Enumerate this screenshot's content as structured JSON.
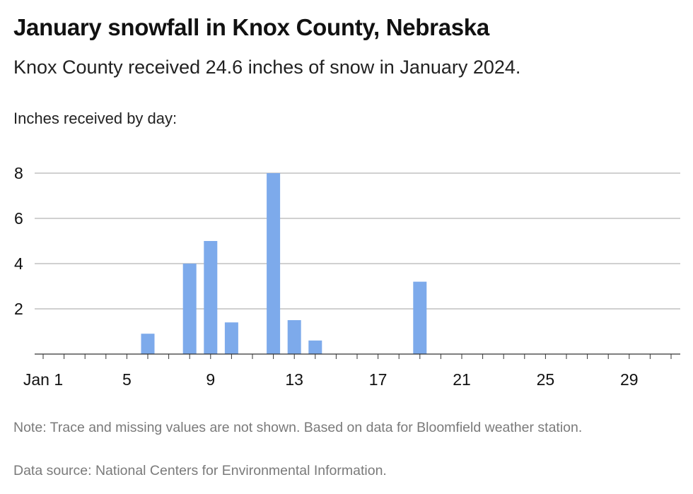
{
  "header": {
    "title": "January snowfall in Knox County, Nebraska",
    "subtitle": "Knox County received 24.6 inches of snow in January 2024.",
    "ylabel": "Inches received by day:"
  },
  "footer": {
    "note": "Note: Trace and missing values are not shown. Based on data for Bloomfield weather station.",
    "source": "Data source: National Centers for Environmental Information."
  },
  "colors": {
    "bar": "#7daaeb",
    "grid": "#b4b4b4",
    "axis": "#333333"
  },
  "chart_data": {
    "type": "bar",
    "title": "January snowfall in Knox County, Nebraska",
    "subtitle": "Knox County received 24.6 inches of snow in January 2024.",
    "ylabel": "Inches received by day:",
    "xlabel": "",
    "x_domain": [
      1,
      31
    ],
    "ylim": [
      0,
      8
    ],
    "y_ticks": [
      2,
      4,
      6,
      8
    ],
    "x_ticks": [
      {
        "day": 1,
        "label": "Jan 1"
      },
      {
        "day": 5,
        "label": "5"
      },
      {
        "day": 9,
        "label": "9"
      },
      {
        "day": 13,
        "label": "13"
      },
      {
        "day": 17,
        "label": "17"
      },
      {
        "day": 21,
        "label": "21"
      },
      {
        "day": 25,
        "label": "25"
      },
      {
        "day": 29,
        "label": "29"
      }
    ],
    "grid": true,
    "bars": [
      {
        "day": 6,
        "value": 0.9
      },
      {
        "day": 8,
        "value": 4.0
      },
      {
        "day": 9,
        "value": 5.0
      },
      {
        "day": 10,
        "value": 1.4
      },
      {
        "day": 12,
        "value": 8.0
      },
      {
        "day": 13,
        "value": 1.5
      },
      {
        "day": 14,
        "value": 0.6
      },
      {
        "day": 19,
        "value": 3.2
      }
    ]
  }
}
